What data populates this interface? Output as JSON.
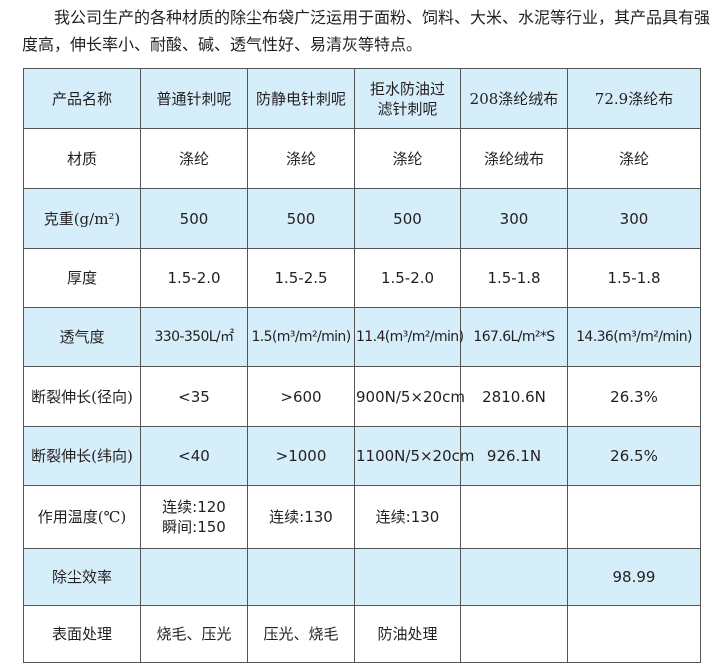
{
  "intro": "我公司生产的各种材质的除尘布袋广泛运用于面粉、饲料、大米、水泥等行业，其产品具有强度高，伸长率小、耐酸、碱、透气性好、易清灰等特点。",
  "row_fill_color": "#d6eef9",
  "table": {
    "rows": [
      {
        "label": "产品名称",
        "blue": true,
        "cells": [
          "普通针刺呢",
          "防静电针刺呢",
          "拒水防油过\n滤针刺呢",
          "208涤纶绒布",
          "72.9涤纶布"
        ]
      },
      {
        "label": "材质",
        "blue": false,
        "cells": [
          "涤纶",
          "涤纶",
          "涤纶",
          "涤纶绒布",
          "涤纶"
        ]
      },
      {
        "label": "克重(g/m²)",
        "blue": true,
        "cells": [
          "500",
          "500",
          "500",
          "300",
          "300"
        ]
      },
      {
        "label": "厚度",
        "blue": false,
        "cells": [
          "1.5-2.0",
          "1.5-2.5",
          "1.5-2.0",
          "1.5-1.8",
          "1.5-1.8"
        ]
      },
      {
        "label": "透气度",
        "blue": true,
        "cells": [
          "330-350L/㎡",
          "1.5(m³/m²/min)",
          "11.4(m³/m²/min)",
          "167.6L/m²*S",
          "14.36(m³/m²/min)"
        ]
      },
      {
        "label": "断裂伸长(径向)",
        "blue": false,
        "cells": [
          "<35",
          ">600",
          "900N/5×20cm",
          "2810.6N",
          "26.3%"
        ]
      },
      {
        "label": "断裂伸长(纬向)",
        "blue": true,
        "cells": [
          "<40",
          ">1000",
          "1100N/5×20cm",
          "926.1N",
          "26.5%"
        ]
      },
      {
        "label": "作用温度(℃)",
        "blue": false,
        "cells": [
          "连续:120\n瞬间:150",
          "连续:130",
          "连续:130",
          "",
          ""
        ]
      },
      {
        "label": "除尘效率",
        "blue": true,
        "cells": [
          "",
          "",
          "",
          "",
          "98.99"
        ]
      },
      {
        "label": "表面处理",
        "blue": false,
        "cells": [
          "烧毛、压光",
          "压光、烧毛",
          "防油处理",
          "",
          ""
        ]
      }
    ]
  }
}
